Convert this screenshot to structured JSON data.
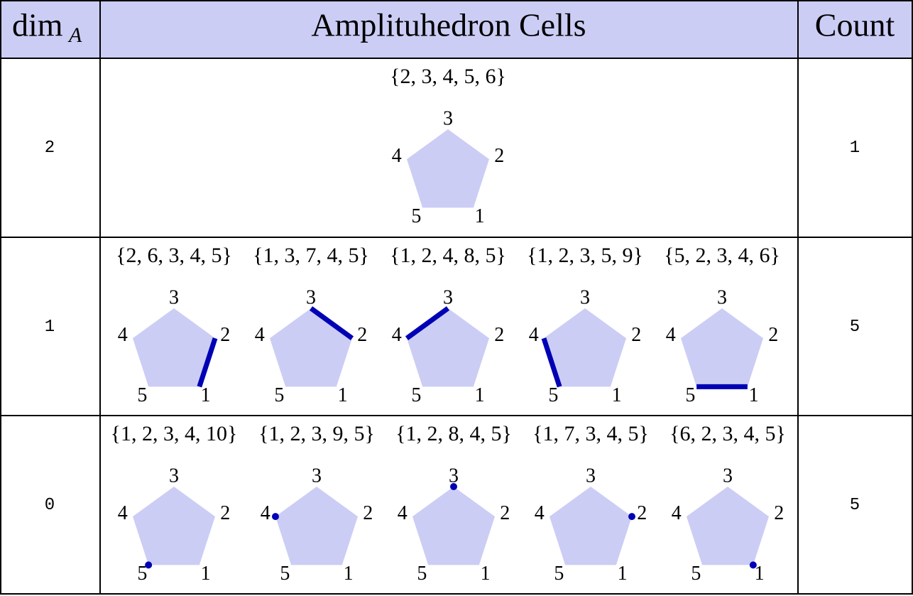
{
  "table": {
    "header": {
      "dim": "dim",
      "dim_sub": "A",
      "cells": "Amplituhedron Cells",
      "count": "Count"
    },
    "vertex_labels": [
      "1",
      "2",
      "3",
      "4",
      "5"
    ],
    "rows": [
      {
        "dim": "2",
        "count": "1",
        "cells": [
          {
            "label": "{2, 3, 4, 5, 6}"
          }
        ]
      },
      {
        "dim": "1",
        "count": "5",
        "cells": [
          {
            "label": "{2, 6, 3, 4, 5}",
            "edge": [
              2,
              1
            ]
          },
          {
            "label": "{1, 3, 7, 4, 5}",
            "edge": [
              3,
              2
            ]
          },
          {
            "label": "{1, 2, 4, 8, 5}",
            "edge": [
              4,
              3
            ]
          },
          {
            "label": "{1, 2, 3, 5, 9}",
            "edge": [
              5,
              4
            ]
          },
          {
            "label": "{5, 2, 3, 4, 6}",
            "edge": [
              5,
              1
            ]
          }
        ]
      },
      {
        "dim": "0",
        "count": "5",
        "cells": [
          {
            "label": "{1, 2, 3, 4, 10}",
            "vertex": 5
          },
          {
            "label": "{1, 2, 3, 9, 5}",
            "vertex": 4
          },
          {
            "label": "{1, 2, 8, 4, 5}",
            "vertex": 3
          },
          {
            "label": "{1, 7, 3, 4, 5}",
            "vertex": 2
          },
          {
            "label": "{6, 2, 3, 4, 5}",
            "vertex": 1
          }
        ]
      }
    ]
  }
}
